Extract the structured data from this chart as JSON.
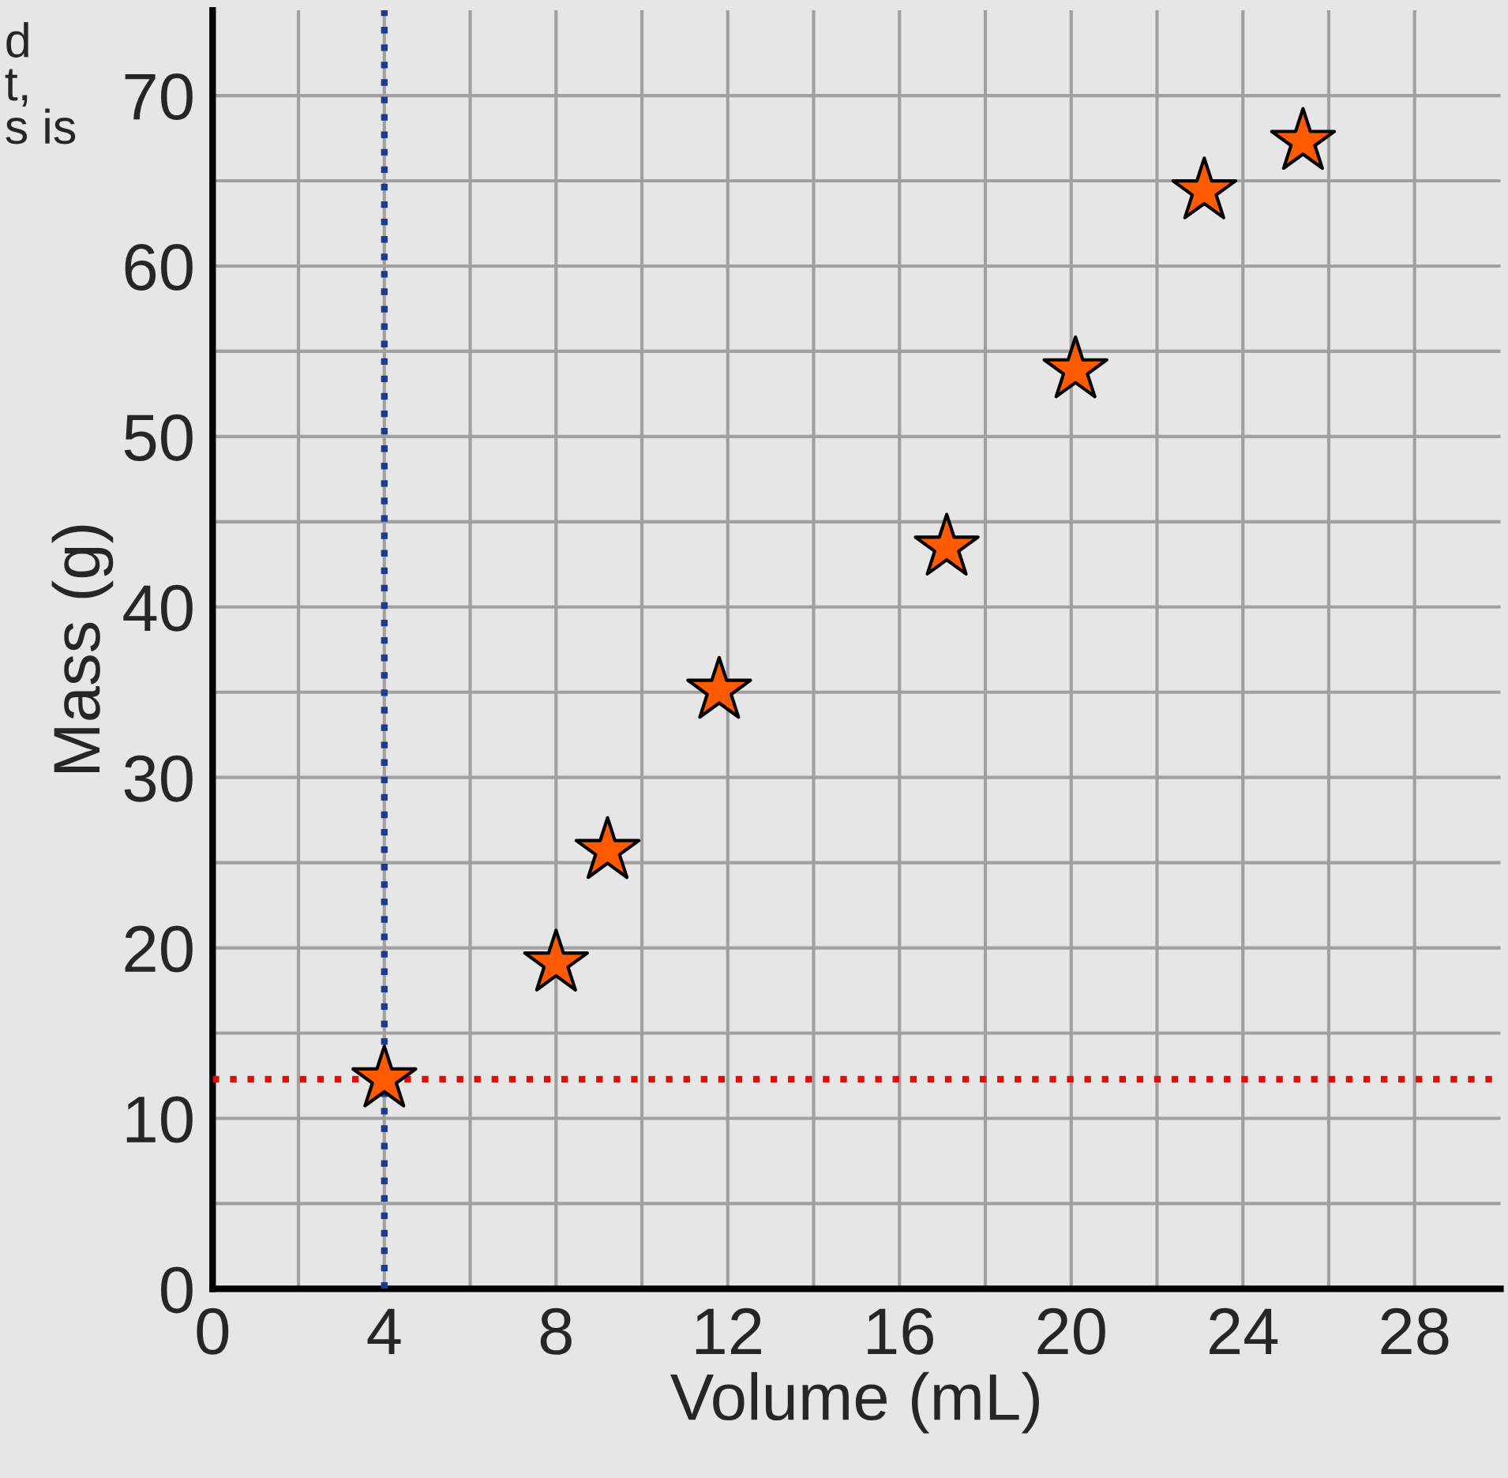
{
  "chart_data": {
    "type": "scatter",
    "xlabel": "Volume (mL)",
    "ylabel": "Mass (g)",
    "x": [
      4,
      8,
      9.2,
      11.8,
      17.1,
      20.1,
      23.1,
      25.4
    ],
    "values": [
      12.3,
      19.1,
      25.7,
      35.1,
      43.5,
      53.9,
      64.4,
      67.3
    ],
    "color": "#ff5a00",
    "marker": "star",
    "xlim": [
      0,
      30
    ],
    "ylim": [
      0,
      75
    ],
    "xticks": [
      0,
      {
        "value": 2,
        "label": null
      },
      4,
      {
        "value": 6,
        "label": null
      },
      8,
      {
        "value": 10,
        "label": null
      },
      12,
      {
        "value": 14,
        "label": null
      },
      16,
      {
        "value": 18,
        "label": null
      },
      20,
      {
        "value": 22,
        "label": null
      },
      24,
      {
        "value": 26,
        "label": null
      },
      28
    ],
    "yticks": [
      0,
      {
        "value": 5,
        "label": null
      },
      10,
      {
        "value": 15,
        "label": null
      },
      20,
      {
        "value": 25,
        "label": null
      },
      30,
      {
        "value": 35,
        "label": null
      },
      40,
      {
        "value": 45,
        "label": null
      },
      50,
      {
        "value": 55,
        "label": null
      },
      60,
      {
        "value": 65,
        "label": null
      },
      70
    ],
    "grid": true,
    "ref_lines": [
      {
        "axis": "x",
        "value": 4,
        "color": "#1f3a8a",
        "line_style": "dotted"
      },
      {
        "axis": "y",
        "value": 12.3,
        "color": "#d81010",
        "line_style": "dotted"
      }
    ],
    "annotations": [
      "d\nt,\ns is"
    ]
  }
}
